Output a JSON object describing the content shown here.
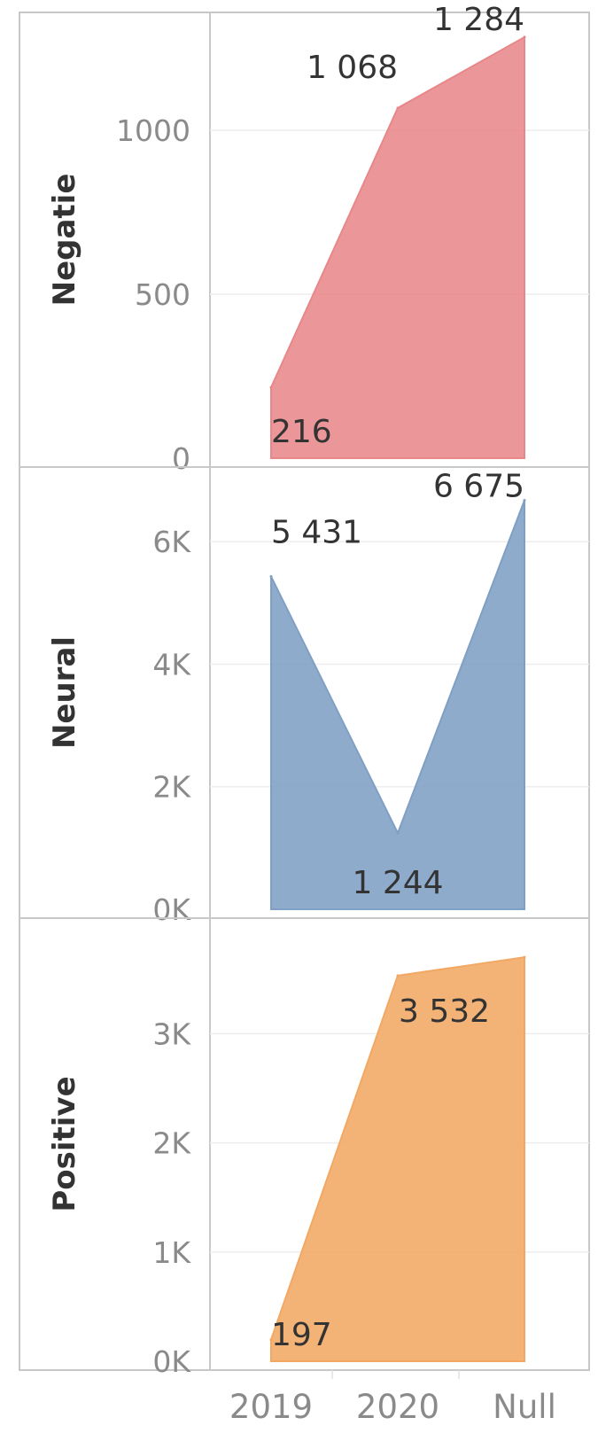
{
  "chart_data": {
    "type": "area",
    "categories": [
      "2019",
      "2020",
      "Null"
    ],
    "panels": [
      {
        "name": "Negatie",
        "values": [
          216,
          1068,
          1284
        ],
        "value_labels": [
          "216",
          "1 068",
          "1 284"
        ],
        "ylim": [
          0,
          1300
        ],
        "yticks": [
          0,
          500,
          1000
        ],
        "ytick_labels": [
          "0",
          "500",
          "1000"
        ],
        "color": "#E8878A"
      },
      {
        "name": "Neural",
        "values": [
          5431,
          1244,
          6675
        ],
        "value_labels": [
          "5 431",
          "1 244",
          "6 675"
        ],
        "ylim": [
          0,
          6900
        ],
        "yticks": [
          0,
          2000,
          4000,
          6000
        ],
        "ytick_labels": [
          "0K",
          "2K",
          "4K",
          "6K"
        ],
        "color": "#7F9FC4"
      },
      {
        "name": "Positive",
        "values": [
          197,
          3532,
          3700
        ],
        "value_labels": [
          "197",
          "3 532",
          ""
        ],
        "ylim": [
          0,
          3880
        ],
        "yticks": [
          0,
          1000,
          2000,
          3000
        ],
        "ytick_labels": [
          "0K",
          "1K",
          "2K",
          "3K"
        ],
        "color": "#F2A863"
      }
    ],
    "grid": true,
    "legend": "none"
  }
}
